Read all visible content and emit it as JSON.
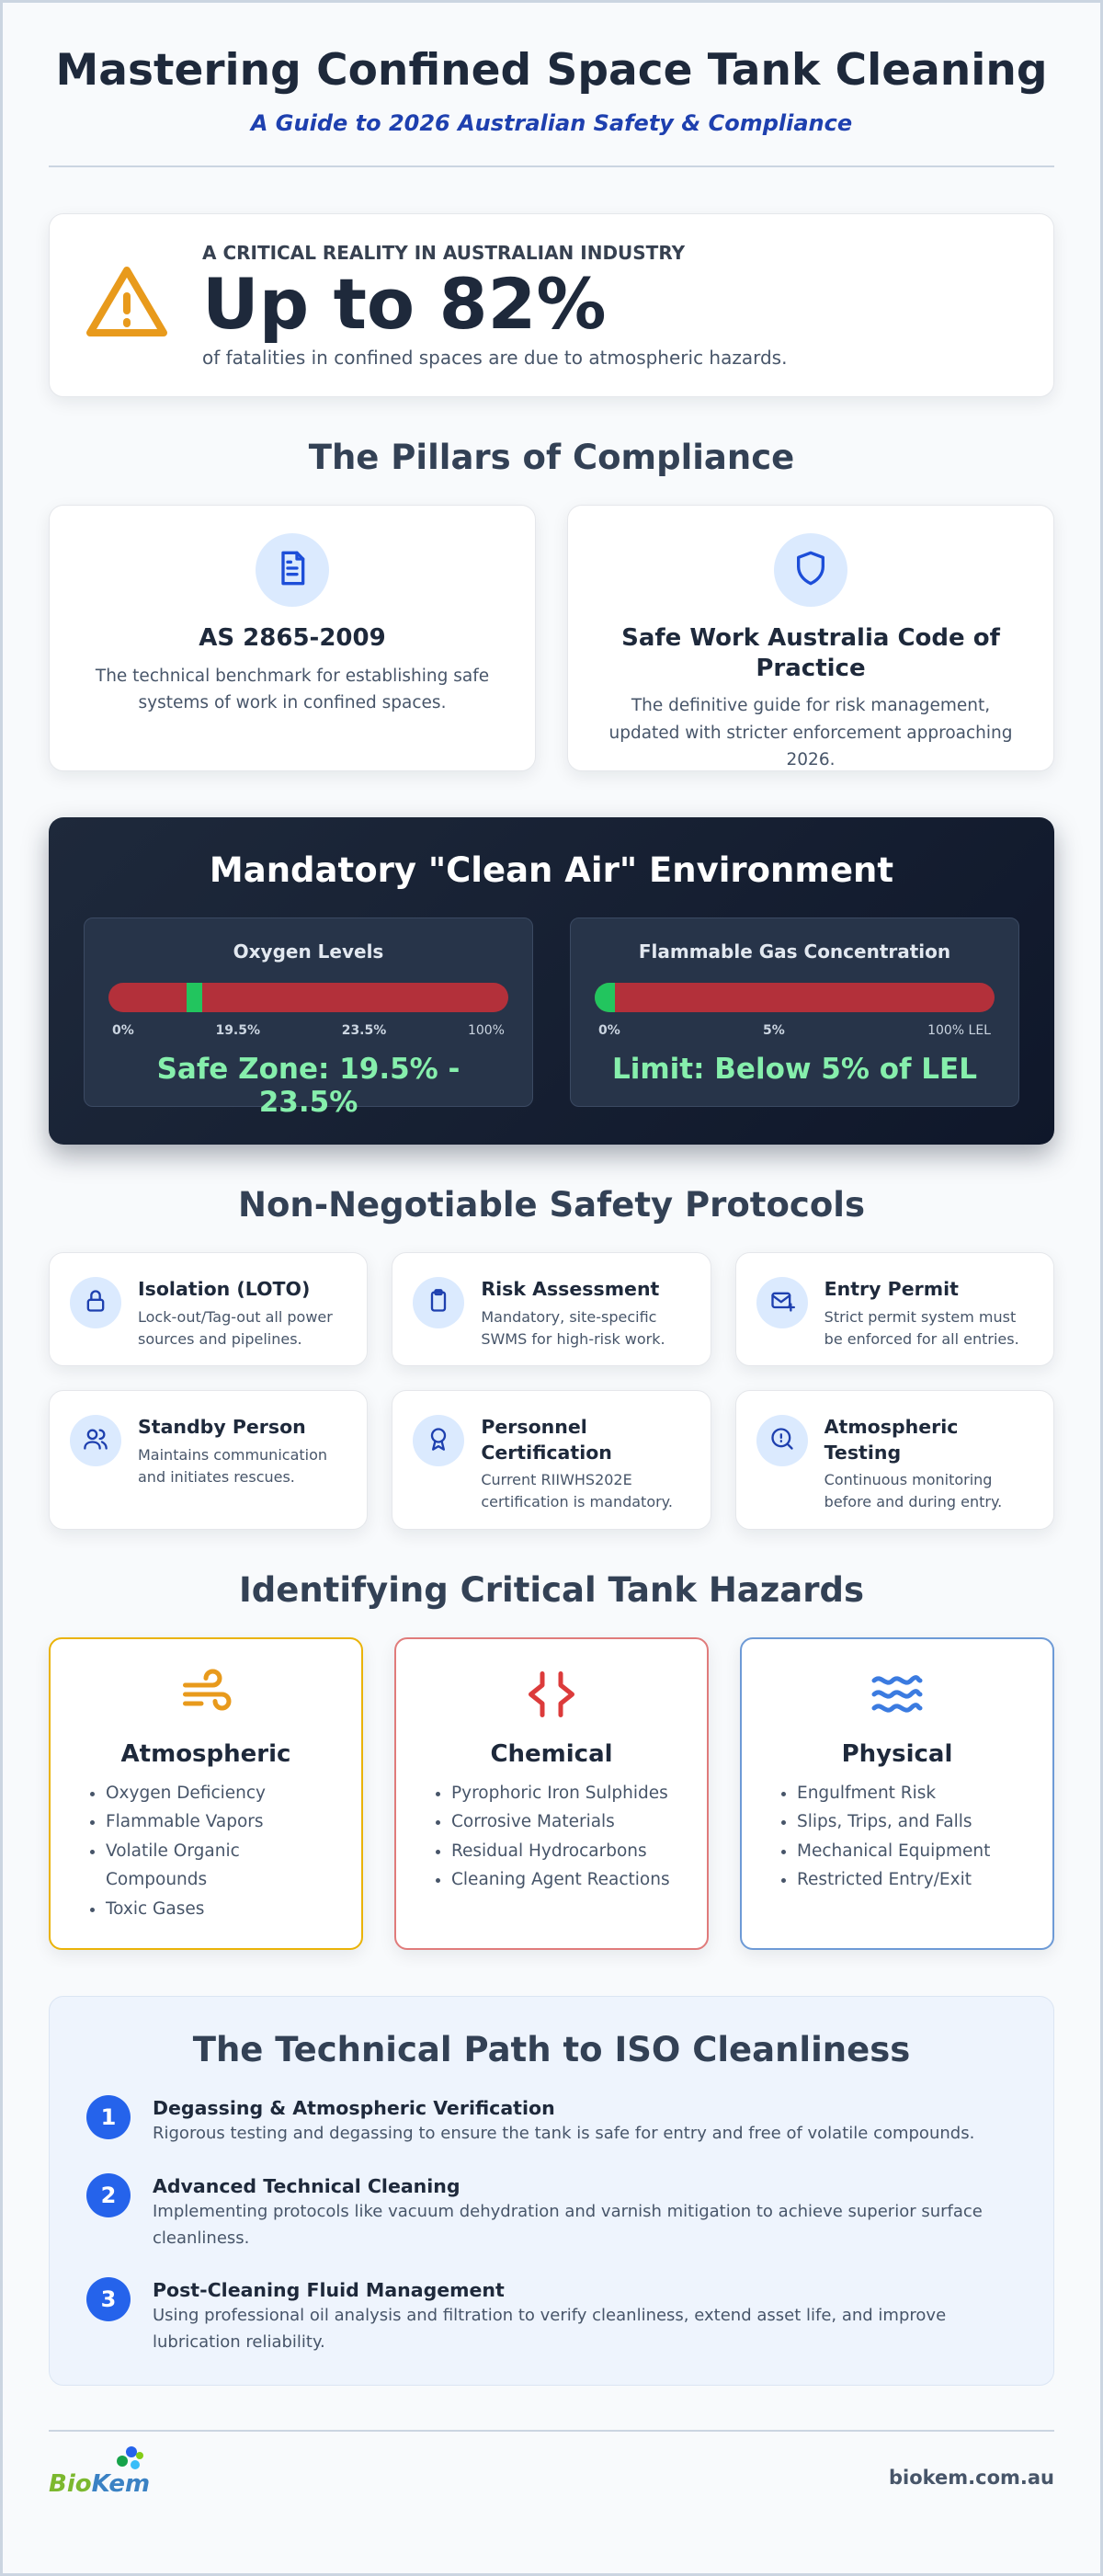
{
  "header": {
    "title": "Mastering Confined Space Tank Cleaning",
    "subtitle": "A Guide to 2026 Australian Safety & Compliance"
  },
  "stat": {
    "kicker": "A CRITICAL REALITY IN AUSTRALIAN INDUSTRY",
    "value": "Up to 82%",
    "text": "of fatalities in confined spaces are due to atmospheric hazards."
  },
  "pillars": {
    "title": "The Pillars of Compliance",
    "items": [
      {
        "title": "AS 2865-2009",
        "text": "The technical benchmark for establishing safe systems of work in confined spaces."
      },
      {
        "title": "Safe Work Australia Code of Practice",
        "text": "The definitive guide for risk management, updated with stricter enforcement approaching 2026."
      }
    ]
  },
  "clean_air": {
    "title": "Mandatory \"Clean Air\" Environment",
    "gauges": [
      {
        "title": "Oxygen Levels",
        "labels": [
          "0%",
          "19.5%",
          "23.5%",
          "100%"
        ],
        "caption": "Safe Zone: 19.5% - 23.5%"
      },
      {
        "title": "Flammable Gas Concentration",
        "labels": [
          "0%",
          "5%",
          "100% LEL"
        ],
        "caption": "Limit: Below 5% of LEL"
      }
    ]
  },
  "protocols": {
    "title": "Non-Negotiable Safety Protocols",
    "items": [
      {
        "title": "Isolation (LOTO)",
        "text": "Lock-out/Tag-out all power sources and pipelines."
      },
      {
        "title": "Risk Assessment",
        "text": "Mandatory, site-specific SWMS for high-risk work."
      },
      {
        "title": "Entry Permit",
        "text": "Strict permit system must be enforced for all entries."
      },
      {
        "title": "Standby Person",
        "text": "Maintains communication and initiates rescues."
      },
      {
        "title": "Personnel Certification",
        "text": "Current RIIWHS202E certification is mandatory."
      },
      {
        "title": "Atmospheric Testing",
        "text": "Continuous monitoring before and during entry."
      }
    ]
  },
  "hazards": {
    "title": "Identifying Critical Tank Hazards",
    "items": [
      {
        "title": "Atmospheric",
        "bullets": [
          "Oxygen Deficiency",
          "Flammable Vapors",
          "Volatile Organic Compounds",
          "Toxic Gases"
        ]
      },
      {
        "title": "Chemical",
        "bullets": [
          "Pyrophoric Iron Sulphides",
          "Corrosive Materials",
          "Residual Hydrocarbons",
          "Cleaning Agent Reactions"
        ]
      },
      {
        "title": "Physical",
        "bullets": [
          "Engulfment Risk",
          "Slips, Trips, and Falls",
          "Mechanical Equipment",
          "Restricted Entry/Exit"
        ]
      }
    ]
  },
  "path": {
    "title": "The Technical Path to ISO Cleanliness",
    "steps": [
      {
        "number": 1,
        "title": "Degassing & Atmospheric Verification",
        "text": "Rigorous testing and degassing to ensure the tank is safe for entry and free of volatile compounds."
      },
      {
        "number": 2,
        "title": "Advanced Technical Cleaning",
        "text": "Implementing protocols like vacuum dehydration and varnish mitigation to achieve superior surface cleanliness."
      },
      {
        "number": 3,
        "title": "Post-Cleaning Fluid Management",
        "text": "Using professional oil analysis and filtration to verify cleanliness, extend asset life, and improve lubrication reliability."
      }
    ]
  },
  "footer": {
    "logo_first": "Bio",
    "logo_second": "Kem",
    "url": "biokem.com.au"
  }
}
